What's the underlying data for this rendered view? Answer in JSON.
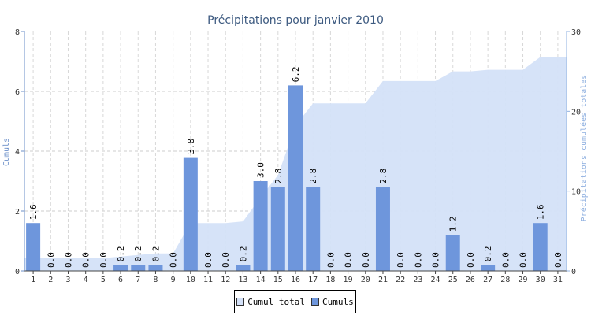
{
  "chart_data": {
    "type": "bar",
    "title": "Précipitations pour janvier 2010",
    "xlabel": "",
    "ylabel": "Cumuls",
    "y2label": "Précipitations cumulées totales",
    "categories": [
      "1",
      "2",
      "3",
      "4",
      "5",
      "6",
      "7",
      "8",
      "9",
      "10",
      "11",
      "12",
      "13",
      "14",
      "15",
      "16",
      "17",
      "18",
      "19",
      "20",
      "21",
      "22",
      "23",
      "24",
      "25",
      "26",
      "27",
      "28",
      "29",
      "30",
      "31"
    ],
    "ylim": [
      0,
      8
    ],
    "y2lim": [
      0,
      30
    ],
    "yticks": [
      "0",
      "2",
      "4",
      "6",
      "8"
    ],
    "y2ticks": [
      "0",
      "10",
      "20",
      "30"
    ],
    "grid": true,
    "legend_position": "bottom-center",
    "series": [
      {
        "name": "Cumul total",
        "type": "area",
        "axis": "right",
        "color": "#d4e1f8",
        "values": [
          1.6,
          1.6,
          1.6,
          1.6,
          1.6,
          1.8,
          2.0,
          2.2,
          2.2,
          6.0,
          6.0,
          6.0,
          6.2,
          9.2,
          12.0,
          18.2,
          21.0,
          21.0,
          21.0,
          21.0,
          23.8,
          23.8,
          23.8,
          23.8,
          25.0,
          25.0,
          25.2,
          25.2,
          25.2,
          26.8,
          26.8
        ]
      },
      {
        "name": "Cumuls",
        "type": "bar",
        "axis": "left",
        "color": "#6e96dc",
        "values": [
          1.6,
          0.0,
          0.0,
          0.0,
          0.0,
          0.2,
          0.2,
          0.2,
          0.0,
          3.8,
          0.0,
          0.0,
          0.2,
          3.0,
          2.8,
          6.2,
          2.8,
          0.0,
          0.0,
          0.0,
          2.8,
          0.0,
          0.0,
          0.0,
          1.2,
          0.0,
          0.2,
          0.0,
          0.0,
          1.6,
          0.0
        ],
        "labels": [
          "1.6",
          "0.0",
          "0.0",
          "0.0",
          "0.0",
          "0.2",
          "0.2",
          "0.2",
          "0.0",
          "3.8",
          "0.0",
          "0.0",
          "0.2",
          "3.0",
          "2.8",
          "6.2",
          "2.8",
          "0.0",
          "0.0",
          "0.0",
          "2.8",
          "0.0",
          "0.0",
          "0.0",
          "1.2",
          "0.0",
          "0.2",
          "0.0",
          "0.0",
          "1.6",
          "0.0"
        ]
      }
    ]
  }
}
